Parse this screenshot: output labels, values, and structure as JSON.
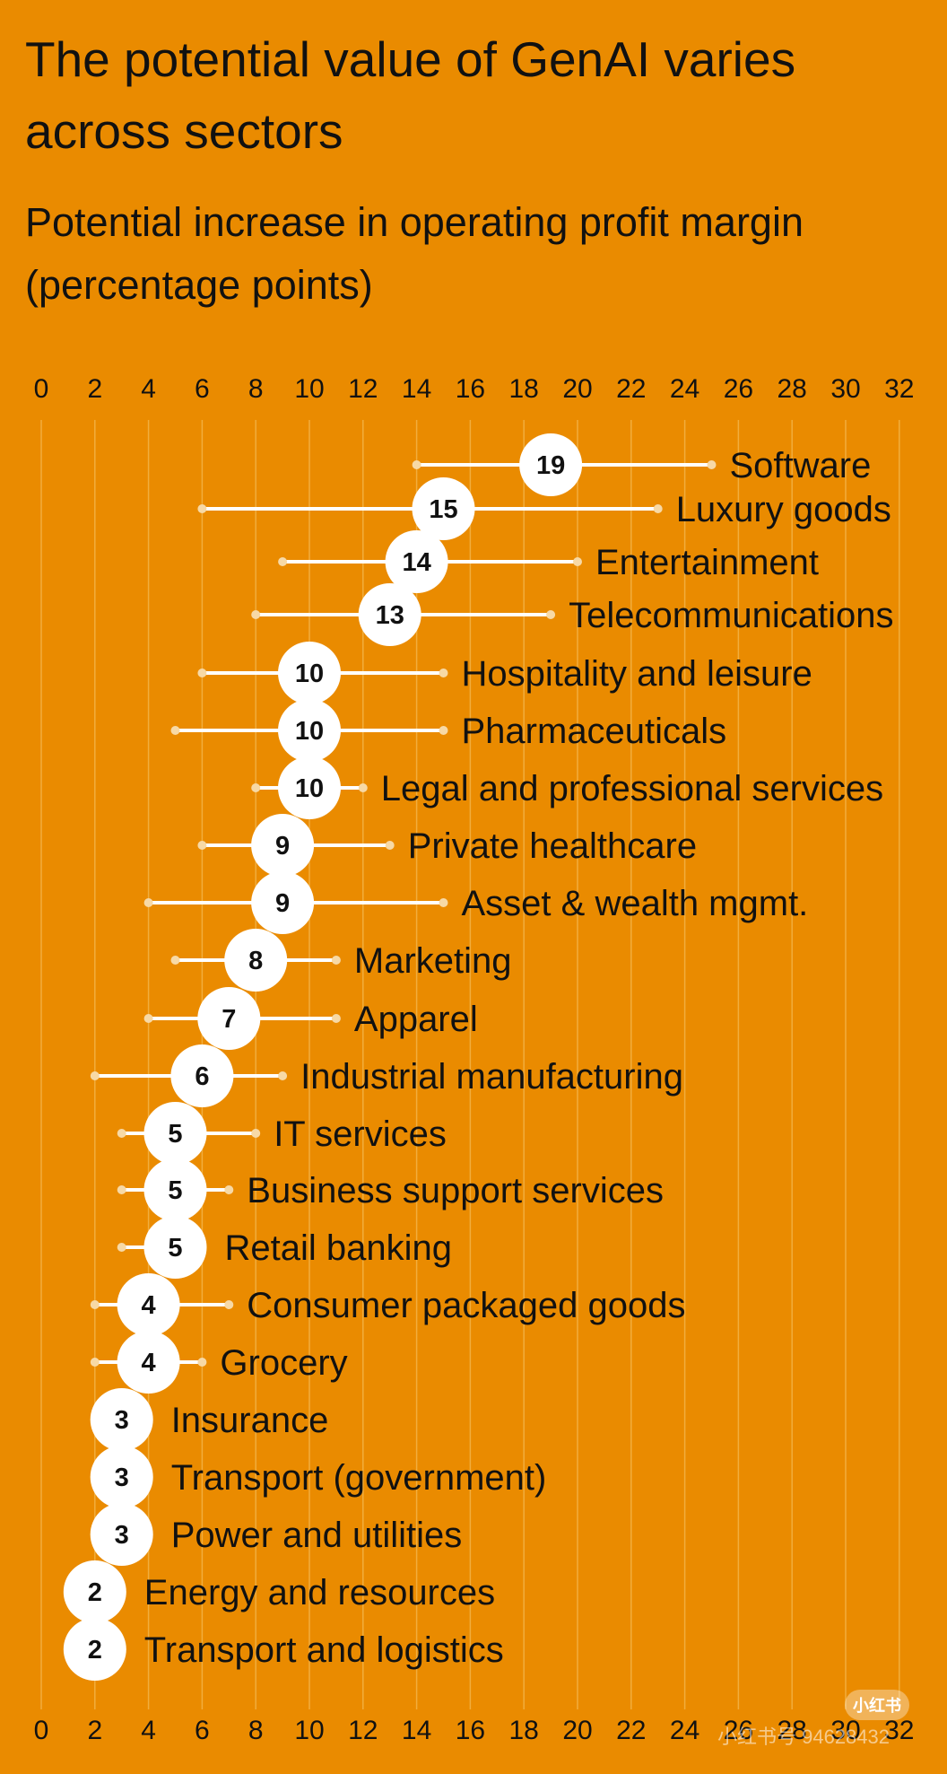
{
  "title": "The potential value of GenAI varies across sectors",
  "subtitle": "Potential increase in operating profit margin (percentage points)",
  "watermark": {
    "badge": "小红书",
    "text": "小红书号 94628432"
  },
  "colors": {
    "background": "#EA8B00",
    "range_line": "#FFFFFF",
    "grid": "#F3B64D",
    "marker_fill": "#FFFFFF",
    "text": "#111111"
  },
  "chart_data": {
    "type": "range-dot",
    "xlim": [
      0,
      32
    ],
    "xticks": [
      0,
      2,
      4,
      6,
      8,
      10,
      12,
      14,
      16,
      18,
      20,
      22,
      24,
      26,
      28,
      30,
      32
    ],
    "axis_position": "top and bottom",
    "grid": true,
    "rows": [
      {
        "label": "Software",
        "value": 19,
        "min": 14,
        "max": 25
      },
      {
        "label": "Luxury goods",
        "value": 15,
        "min": 6,
        "max": 23
      },
      {
        "label": "Entertainment",
        "value": 14,
        "min": 9,
        "max": 20
      },
      {
        "label": "Telecommunications",
        "value": 13,
        "min": 8,
        "max": 19
      },
      {
        "label": "Hospitality and leisure",
        "value": 10,
        "min": 6,
        "max": 15
      },
      {
        "label": "Pharmaceuticals",
        "value": 10,
        "min": 5,
        "max": 15
      },
      {
        "label": "Legal and professional services",
        "value": 10,
        "min": 8,
        "max": 12
      },
      {
        "label": "Private healthcare",
        "value": 9,
        "min": 6,
        "max": 13
      },
      {
        "label": "Asset & wealth mgmt.",
        "value": 9,
        "min": 4,
        "max": 15
      },
      {
        "label": "Marketing",
        "value": 8,
        "min": 5,
        "max": 11
      },
      {
        "label": "Apparel",
        "value": 7,
        "min": 4,
        "max": 11
      },
      {
        "label": "Industrial manufacturing",
        "value": 6,
        "min": 2,
        "max": 9
      },
      {
        "label": "IT services",
        "value": 5,
        "min": 3,
        "max": 8
      },
      {
        "label": "Business support services",
        "value": 5,
        "min": 3,
        "max": 7
      },
      {
        "label": "Retail banking",
        "value": 5,
        "min": 3,
        "max": 6
      },
      {
        "label": "Consumer packaged goods",
        "value": 4,
        "min": 2,
        "max": 7
      },
      {
        "label": "Grocery",
        "value": 4,
        "min": 2,
        "max": 6
      },
      {
        "label": "Insurance",
        "value": 3,
        "min": 2,
        "max": 4
      },
      {
        "label": "Transport (government)",
        "value": 3,
        "min": 2,
        "max": 4
      },
      {
        "label": "Power and utilities",
        "value": 3,
        "min": 2,
        "max": 4
      },
      {
        "label": "Energy and resources",
        "value": 2,
        "min": 1,
        "max": 3
      },
      {
        "label": "Transport and logistics",
        "value": 2,
        "min": 1,
        "max": 3
      }
    ]
  }
}
